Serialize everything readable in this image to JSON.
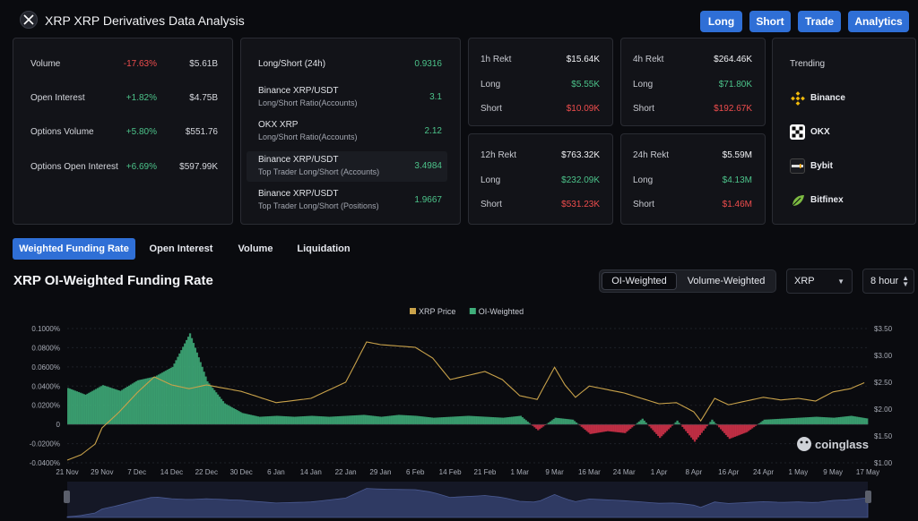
{
  "header": {
    "title": "XRP XRP Derivatives Data Analysis",
    "buttons": [
      {
        "label": "Long",
        "name": "long-button"
      },
      {
        "label": "Short",
        "name": "short-button"
      },
      {
        "label": "Trade",
        "name": "trade-button"
      },
      {
        "label": "Analytics",
        "name": "analytics-button"
      }
    ]
  },
  "stats": [
    {
      "label": "Volume",
      "change": "-17.63%",
      "dir": "down",
      "value": "$5.61B"
    },
    {
      "label": "Open Interest",
      "change": "+1.82%",
      "dir": "up",
      "value": "$4.75B"
    },
    {
      "label": "Options Volume",
      "change": "+5.80%",
      "dir": "up",
      "value": "$551.76"
    },
    {
      "label": "Options Open Interest",
      "change": "+6.69%",
      "dir": "up",
      "value": "$597.99K"
    }
  ],
  "long_short": [
    {
      "title": "Long/Short (24h)",
      "sub": "",
      "value": "0.9316"
    },
    {
      "title": "Binance XRP/USDT",
      "sub": "Long/Short Ratio(Accounts)",
      "value": "3.1"
    },
    {
      "title": "OKX XRP",
      "sub": "Long/Short Ratio(Accounts)",
      "value": "2.12"
    },
    {
      "title": "Binance XRP/USDT",
      "sub": "Top Trader Long/Short (Accounts)",
      "value": "3.4984"
    },
    {
      "title": "Binance XRP/USDT",
      "sub": "Top Trader Long/Short (Positions)",
      "value": "1.9667"
    }
  ],
  "rekt": [
    {
      "period": "1h Rekt",
      "total": "$15.64K",
      "long_label": "Long",
      "long": "$5.55K",
      "short_label": "Short",
      "short": "$10.09K"
    },
    {
      "period": "4h Rekt",
      "total": "$264.46K",
      "long_label": "Long",
      "long": "$71.80K",
      "short_label": "Short",
      "short": "$192.67K"
    },
    {
      "period": "12h Rekt",
      "total": "$763.32K",
      "long_label": "Long",
      "long": "$232.09K",
      "short_label": "Short",
      "short": "$531.23K"
    },
    {
      "period": "24h Rekt",
      "total": "$5.59M",
      "long_label": "Long",
      "long": "$4.13M",
      "short_label": "Short",
      "short": "$1.46M"
    }
  ],
  "trending": {
    "title": "Trending",
    "items": [
      {
        "name": "Binance",
        "icon": "binance-icon",
        "color": "#f0b90b"
      },
      {
        "name": "OKX",
        "icon": "okx-icon",
        "color": "#ffffff"
      },
      {
        "name": "Bybit",
        "icon": "bybit-icon",
        "color": "#ffffff"
      },
      {
        "name": "Bitfinex",
        "icon": "bitfinex-icon",
        "color": "#7dbb42"
      }
    ]
  },
  "tabs": [
    "Weighted Funding Rate",
    "Open Interest",
    "Volume",
    "Liquidation"
  ],
  "active_tab": 0,
  "chart_header": {
    "title": "XRP OI-Weighted Funding Rate",
    "toggle": [
      "OI-Weighted",
      "Volume-Weighted"
    ],
    "toggle_active": 0,
    "symbol": "XRP",
    "interval": "8 hour"
  },
  "watermark": "coinglass",
  "chart_data": {
    "type": "bar",
    "title": "",
    "legend": [
      {
        "name": "XRP Price",
        "color": "#c9a24a"
      },
      {
        "name": "OI-Weighted",
        "color": "#3fae7a"
      }
    ],
    "legend_position": "top-center",
    "x_ticks": [
      "21 Nov",
      "29 Nov",
      "7 Dec",
      "14 Dec",
      "22 Dec",
      "30 Dec",
      "6 Jan",
      "14 Jan",
      "22 Jan",
      "29 Jan",
      "6 Feb",
      "14 Feb",
      "21 Feb",
      "1 Mar",
      "9 Mar",
      "16 Mar",
      "24 Mar",
      "1 Apr",
      "8 Apr",
      "16 Apr",
      "24 Apr",
      "1 May",
      "9 May",
      "17 May"
    ],
    "y_left": {
      "ticks": [
        "0.1000%",
        "0.0800%",
        "0.0600%",
        "0.0400%",
        "0.0200%",
        "0",
        "-0.0200%",
        "-0.0400%"
      ],
      "range": [
        -0.04,
        0.1
      ]
    },
    "y_right": {
      "ticks": [
        "$3.50",
        "$3.00",
        "$2.50",
        "$2.00",
        "$1.50",
        "$1.00"
      ],
      "range": [
        1.0,
        3.5
      ]
    },
    "grid": true,
    "series": [
      {
        "name": "OI-Weighted",
        "axis": "left",
        "color_pos": "#3fae7a",
        "color_neg": "#d6334a",
        "x": [
          0,
          0.5,
          1,
          1.5,
          2,
          2.5,
          3,
          3.5,
          4,
          4.5,
          5,
          5.5,
          6,
          6.5,
          7,
          7.5,
          8,
          8.5,
          9,
          9.5,
          10,
          10.5,
          11,
          11.5,
          12,
          12.5,
          13,
          13.5,
          14,
          14.5,
          15,
          15.5,
          16,
          16.5,
          17,
          17.5,
          18,
          18.5,
          19,
          19.5,
          20,
          20.5,
          21,
          21.5,
          22,
          22.5,
          23,
          23.5
        ],
        "values": [
          0.038,
          0.031,
          0.041,
          0.035,
          0.046,
          0.05,
          0.06,
          0.095,
          0.045,
          0.022,
          0.012,
          0.008,
          0.009,
          0.008,
          0.009,
          0.008,
          0.009,
          0.01,
          0.008,
          0.01,
          0.009,
          0.007,
          0.008,
          0.009,
          0.008,
          0.007,
          0.009,
          -0.006,
          0.007,
          0.005,
          -0.01,
          -0.007,
          -0.009,
          0.006,
          -0.014,
          0.004,
          -0.018,
          0.005,
          -0.015,
          -0.008,
          0.005,
          0.006,
          0.007,
          0.008,
          0.007,
          0.009,
          0.006,
          0.006
        ]
      },
      {
        "name": "XRP Price",
        "axis": "right",
        "color": "#c9a24a",
        "x": [
          0,
          0.4,
          0.8,
          1,
          1.5,
          2,
          2.5,
          3,
          3.5,
          4,
          5,
          6,
          7,
          8,
          8.6,
          9,
          10,
          10.5,
          11,
          12,
          12.5,
          13,
          13.5,
          14,
          14.3,
          14.6,
          15,
          16,
          17,
          17.5,
          18,
          18.2,
          18.6,
          19,
          20,
          20.5,
          21,
          21.5,
          22,
          22.5,
          23,
          23.5
        ],
        "values": [
          1.05,
          1.15,
          1.35,
          1.65,
          1.95,
          2.3,
          2.6,
          2.45,
          2.38,
          2.45,
          2.33,
          2.12,
          2.2,
          2.5,
          3.25,
          3.2,
          3.15,
          2.95,
          2.55,
          2.7,
          2.55,
          2.25,
          2.18,
          2.78,
          2.45,
          2.22,
          2.43,
          2.3,
          2.1,
          2.12,
          1.95,
          1.78,
          2.2,
          2.08,
          2.22,
          2.17,
          2.2,
          2.15,
          2.32,
          2.38,
          2.52,
          2.42
        ]
      }
    ]
  }
}
